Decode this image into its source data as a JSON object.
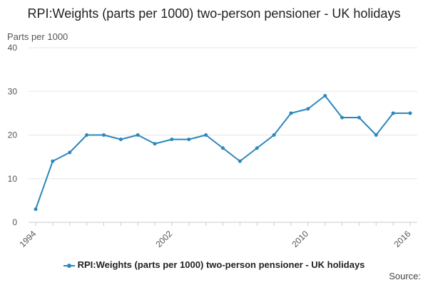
{
  "chart_data": {
    "type": "line",
    "title": "RPI:Weights (parts per 1000) two-person pensioner - UK holidays",
    "ylabel": "Parts per 1000",
    "xlabel": "",
    "x": [
      1994,
      1995,
      1996,
      1997,
      1998,
      1999,
      2000,
      2001,
      2002,
      2003,
      2004,
      2005,
      2006,
      2007,
      2008,
      2009,
      2010,
      2011,
      2012,
      2013,
      2014,
      2015,
      2016
    ],
    "series": [
      {
        "name": "RPI:Weights (parts per 1000) two-person pensioner - UK holidays",
        "values": [
          3,
          14,
          16,
          20,
          20,
          19,
          20,
          18,
          19,
          19,
          20,
          17,
          14,
          17,
          20,
          25,
          26,
          29,
          24,
          24,
          20,
          25,
          25
        ]
      }
    ],
    "ylim": [
      0,
      40
    ],
    "yticks": [
      "0",
      "10",
      "20",
      "30",
      "40"
    ],
    "xticks": [
      "1994",
      "2002",
      "2010",
      "2016"
    ],
    "grid": true,
    "legend": "bottom",
    "color": "#2b87bd"
  },
  "footer": {
    "source_label": "Source:"
  }
}
